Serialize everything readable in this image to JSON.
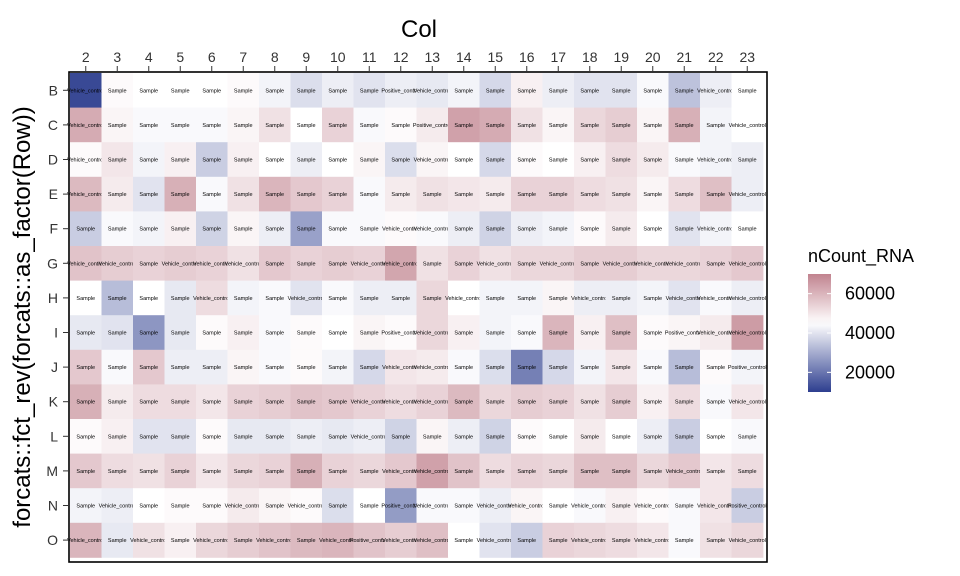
{
  "chart_data": {
    "type": "heatmap",
    "xlabel": "Col",
    "ylabel": "forcats::fct_rev(forcats::as_factor(Row))",
    "columns": [
      "2",
      "3",
      "4",
      "5",
      "6",
      "7",
      "8",
      "9",
      "10",
      "11",
      "12",
      "13",
      "14",
      "15",
      "16",
      "17",
      "18",
      "19",
      "20",
      "21",
      "22",
      "23"
    ],
    "rows": [
      "B",
      "C",
      "D",
      "E",
      "F",
      "G",
      "H",
      "I",
      "J",
      "K",
      "L",
      "M",
      "N",
      "O"
    ],
    "legend": {
      "title": "nCount_RNA",
      "breaks": [
        60000,
        40000,
        20000
      ],
      "labels": [
        "60000",
        "40000",
        "20000"
      ],
      "limits": [
        10000,
        70000
      ],
      "midpoint": 45000,
      "colors": {
        "low": "#2d3e8f",
        "mid": "#ffffff",
        "high": "#c1838f"
      }
    },
    "label_abbrev": {
      "S": "Sample",
      "V": "Vehicle_control",
      "P": "Positive_control"
    },
    "labels": [
      [
        "V",
        "S",
        "S",
        "S",
        "S",
        "S",
        "S",
        "S",
        "S",
        "S",
        "P",
        "V",
        "S",
        "S",
        "S",
        "S",
        "S",
        "S",
        "S",
        "S",
        "V",
        "S"
      ],
      [
        "V",
        "S",
        "S",
        "S",
        "S",
        "S",
        "S",
        "S",
        "S",
        "S",
        "S",
        "P",
        "S",
        "S",
        "S",
        "S",
        "S",
        "S",
        "S",
        "S",
        "S",
        "V"
      ],
      [
        "V",
        "S",
        "S",
        "S",
        "S",
        "S",
        "S",
        "S",
        "S",
        "S",
        "S",
        "V",
        "S",
        "S",
        "S",
        "S",
        "S",
        "S",
        "S",
        "S",
        "V",
        "S"
      ],
      [
        "V",
        "S",
        "S",
        "S",
        "S",
        "S",
        "S",
        "S",
        "S",
        "S",
        "S",
        "S",
        "S",
        "S",
        "S",
        "S",
        "S",
        "S",
        "S",
        "S",
        "S",
        "V"
      ],
      [
        "S",
        "S",
        "S",
        "S",
        "S",
        "S",
        "S",
        "S",
        "S",
        "S",
        "V",
        "V",
        "S",
        "S",
        "S",
        "S",
        "S",
        "S",
        "S",
        "S",
        "V",
        "S"
      ],
      [
        "V",
        "V",
        "S",
        "V",
        "V",
        "V",
        "S",
        "S",
        "S",
        "V",
        "V",
        "S",
        "S",
        "V",
        "S",
        "V",
        "S",
        "V",
        "V",
        "V",
        "S",
        "V"
      ],
      [
        "S",
        "S",
        "S",
        "S",
        "V",
        "S",
        "S",
        "V",
        "S",
        "S",
        "S",
        "S",
        "V",
        "S",
        "S",
        "S",
        "V",
        "S",
        "S",
        "V",
        "V",
        "V"
      ],
      [
        "S",
        "S",
        "S",
        "S",
        "S",
        "S",
        "S",
        "S",
        "S",
        "S",
        "P",
        "V",
        "S",
        "S",
        "S",
        "S",
        "S",
        "S",
        "S",
        "P",
        "V",
        "V"
      ],
      [
        "S",
        "S",
        "S",
        "S",
        "S",
        "S",
        "S",
        "S",
        "S",
        "S",
        "V",
        "V",
        "S",
        "S",
        "S",
        "S",
        "S",
        "S",
        "S",
        "S",
        "S",
        "P"
      ],
      [
        "S",
        "S",
        "S",
        "S",
        "S",
        "S",
        "S",
        "S",
        "S",
        "V",
        "V",
        "V",
        "S",
        "S",
        "S",
        "S",
        "S",
        "S",
        "S",
        "S",
        "S",
        "V"
      ],
      [
        "S",
        "S",
        "S",
        "S",
        "S",
        "S",
        "S",
        "S",
        "S",
        "V",
        "S",
        "S",
        "S",
        "S",
        "S",
        "S",
        "S",
        "S",
        "S",
        "S",
        "S",
        "S"
      ],
      [
        "S",
        "S",
        "S",
        "S",
        "S",
        "S",
        "S",
        "S",
        "S",
        "S",
        "V",
        "V",
        "S",
        "S",
        "S",
        "S",
        "S",
        "S",
        "S",
        "V",
        "S",
        "S"
      ],
      [
        "S",
        "V",
        "S",
        "S",
        "S",
        "V",
        "S",
        "V",
        "S",
        "S",
        "P",
        "V",
        "S",
        "V",
        "V",
        "S",
        "V",
        "S",
        "V",
        "S",
        "V",
        "P"
      ],
      [
        "V",
        "S",
        "V",
        "S",
        "V",
        "S",
        "V",
        "S",
        "V",
        "P",
        "V",
        "V",
        "S",
        "V",
        "S",
        "S",
        "V",
        "S",
        "V",
        "S",
        "S",
        "V"
      ]
    ],
    "values": [
      [
        12000,
        46000,
        45000,
        45000,
        45000,
        46000,
        43000,
        39000,
        42000,
        40000,
        42000,
        41000,
        43000,
        38000,
        48000,
        42000,
        40000,
        40000,
        44000,
        34000,
        42000,
        45000
      ],
      [
        62000,
        47000,
        44000,
        44000,
        44000,
        47000,
        51000,
        45000,
        54000,
        44000,
        46000,
        49000,
        64000,
        62000,
        51000,
        47000,
        53000,
        55000,
        47000,
        61000,
        43000,
        45000
      ],
      [
        46000,
        50000,
        43000,
        48000,
        36000,
        48000,
        45000,
        42000,
        45000,
        47000,
        39000,
        47000,
        45000,
        38000,
        46000,
        45000,
        48000,
        52000,
        49000,
        44000,
        43000,
        42000
      ],
      [
        59000,
        49000,
        40000,
        61000,
        44000,
        51000,
        60000,
        56000,
        54000,
        44000,
        49000,
        51000,
        50000,
        49000,
        54000,
        54000,
        52000,
        51000,
        47000,
        52000,
        58000,
        42000
      ],
      [
        36000,
        44000,
        43000,
        48000,
        37000,
        47000,
        42000,
        28000,
        44000,
        44000,
        46000,
        44000,
        42000,
        37000,
        42000,
        43000,
        46000,
        49000,
        45000,
        40000,
        43000,
        45000
      ],
      [
        57000,
        55000,
        54000,
        55000,
        54000,
        51000,
        56000,
        54000,
        55000,
        54000,
        63000,
        51000,
        54000,
        51000,
        53000,
        53000,
        55000,
        55000,
        53000,
        53000,
        54000,
        56000
      ],
      [
        45000,
        33000,
        45000,
        41000,
        52000,
        43000,
        44000,
        40000,
        44000,
        42000,
        42000,
        53000,
        45000,
        43000,
        43000,
        47000,
        42000,
        42000,
        43000,
        40000,
        44000,
        42000
      ],
      [
        41000,
        40000,
        26000,
        41000,
        46000,
        48000,
        44000,
        46000,
        45000,
        47000,
        46000,
        53000,
        48000,
        43000,
        44000,
        60000,
        48000,
        58000,
        46000,
        47000,
        49000,
        65000
      ],
      [
        56000,
        44000,
        56000,
        42000,
        42000,
        47000,
        44000,
        46000,
        43000,
        38000,
        50000,
        49000,
        44000,
        39000,
        22000,
        38000,
        43000,
        50000,
        44000,
        33000,
        46000,
        43000
      ],
      [
        61000,
        49000,
        52000,
        52000,
        50000,
        54000,
        55000,
        57000,
        56000,
        54000,
        52000,
        54000,
        59000,
        53000,
        55000,
        54000,
        51000,
        55000,
        48000,
        52000,
        44000,
        50000
      ],
      [
        46000,
        48000,
        40000,
        40000,
        46000,
        41000,
        41000,
        42000,
        41000,
        42000,
        37000,
        47000,
        42000,
        37000,
        46000,
        45000,
        49000,
        45000,
        42000,
        36000,
        45000,
        44000
      ],
      [
        56000,
        52000,
        51000,
        54000,
        50000,
        53000,
        54000,
        61000,
        54000,
        53000,
        56000,
        64000,
        57000,
        52000,
        54000,
        53000,
        58000,
        58000,
        53000,
        56000,
        50000,
        52000
      ],
      [
        43000,
        42000,
        45000,
        46000,
        46000,
        49000,
        47000,
        46000,
        39000,
        45000,
        27000,
        44000,
        44000,
        42000,
        47000,
        45000,
        44000,
        48000,
        46000,
        44000,
        50000,
        36000
      ],
      [
        60000,
        41000,
        51000,
        48000,
        53000,
        55000,
        57000,
        59000,
        60000,
        57000,
        55000,
        58000,
        45000,
        40000,
        36000,
        54000,
        53000,
        52000,
        50000,
        44000,
        51000,
        53000
      ]
    ]
  }
}
